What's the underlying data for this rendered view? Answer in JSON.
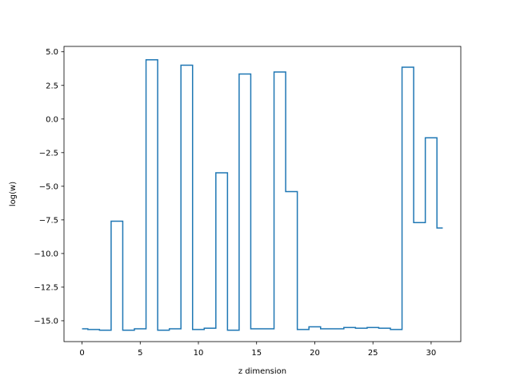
{
  "chart_data": {
    "type": "line",
    "drawstyle": "steps-mid",
    "title": "",
    "xlabel": "z dimension",
    "ylabel": "log(w)",
    "xlim": [
      -1.55,
      32.55
    ],
    "ylim": [
      -16.55,
      5.4
    ],
    "xticks": [
      0,
      5,
      10,
      15,
      20,
      25,
      30
    ],
    "xtick_labels": [
      "0",
      "5",
      "10",
      "15",
      "20",
      "25",
      "30"
    ],
    "yticks": [
      5.0,
      2.5,
      0.0,
      -2.5,
      -5.0,
      -7.5,
      -10.0,
      -12.5,
      -15.0
    ],
    "ytick_labels": [
      "5.0",
      "2.5",
      "0.0",
      "−2.5",
      "−5.0",
      "−7.5",
      "−10.0",
      "−12.5",
      "−15.0"
    ],
    "grid": false,
    "series": [
      {
        "color": "#1f77b4",
        "x": [
          0,
          1,
          2,
          3,
          4,
          5,
          6,
          7,
          8,
          9,
          10,
          11,
          12,
          13,
          14,
          15,
          16,
          17,
          18,
          19,
          20,
          21,
          22,
          23,
          24,
          25,
          26,
          27,
          28,
          29,
          30,
          31
        ],
        "y": [
          -15.6,
          -15.65,
          -15.7,
          -7.6,
          -15.7,
          -15.6,
          4.4,
          -15.7,
          -15.6,
          4.0,
          -15.65,
          -15.55,
          -4.0,
          -15.7,
          3.35,
          -15.6,
          -15.6,
          3.5,
          -5.4,
          -15.65,
          -15.45,
          -15.6,
          -15.6,
          -15.5,
          -15.55,
          -15.5,
          -15.55,
          -15.65,
          3.85,
          -7.7,
          -1.4,
          -8.1
        ]
      }
    ]
  }
}
